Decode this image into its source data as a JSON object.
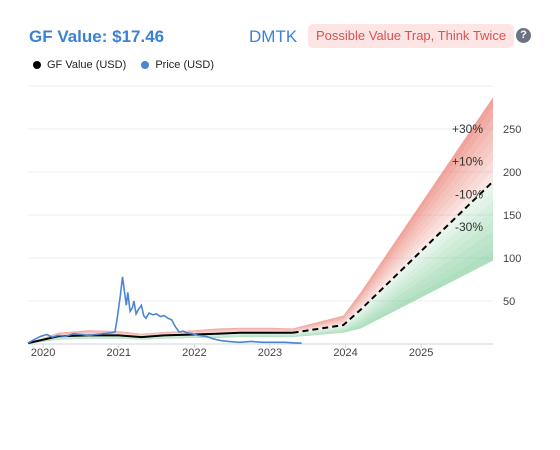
{
  "header": {
    "gf_value_text": "GF Value: $17.46",
    "ticker": "DMTK",
    "badge": "Possible Value Trap, Think Twice",
    "help_icon": "?"
  },
  "colors": {
    "accent": "#3b82d6",
    "badge_bg": "#fde5e5",
    "badge_text": "#d9534f",
    "gf_line": "#000000",
    "price_line": "#4a86d4",
    "upper_band": "#e8786b",
    "lower_band": "#6cc48a"
  },
  "chart_data": {
    "type": "line",
    "ylim": [
      0,
      300
    ],
    "xlim": [
      2019.8,
      2025.95
    ],
    "x_ticks": [
      "2020",
      "2021",
      "2022",
      "2023",
      "2024",
      "2025"
    ],
    "y_ticks": [
      50,
      100,
      150,
      200,
      250
    ],
    "grid": true,
    "legend_position": "top-left",
    "band_labels": [
      "+30%",
      "+10%",
      "-10%",
      "-30%"
    ],
    "series": [
      {
        "name": "GF Value (USD)",
        "x": [
          2019.8,
          2020.2,
          2020.6,
          2021.0,
          2021.3,
          2021.6,
          2022.0,
          2022.3,
          2022.6,
          2023.0,
          2023.3,
          2023.97,
          2024.2,
          2025.95
        ],
        "values": [
          1,
          9,
          10,
          10,
          8,
          10,
          11,
          12,
          13,
          13,
          13,
          22,
          40,
          189
        ]
      },
      {
        "name": "Price (USD)",
        "x": [
          2019.8,
          2019.9,
          2019.97,
          2020.05,
          2020.12,
          2020.2,
          2020.3,
          2020.4,
          2020.5,
          2020.6,
          2020.7,
          2020.8,
          2020.9,
          2020.95,
          2020.98,
          2021.02,
          2021.05,
          2021.07,
          2021.1,
          2021.12,
          2021.15,
          2021.18,
          2021.2,
          2021.23,
          2021.26,
          2021.3,
          2021.33,
          2021.36,
          2021.4,
          2021.45,
          2021.5,
          2021.55,
          2021.6,
          2021.65,
          2021.7,
          2021.75,
          2021.8,
          2021.85,
          2021.9,
          2021.97,
          2022.05,
          2022.15,
          2022.25,
          2022.35,
          2022.45,
          2022.6,
          2022.75,
          2022.9,
          2023.05,
          2023.2,
          2023.35,
          2023.42
        ],
        "values": [
          1,
          6,
          9,
          11,
          8,
          10,
          9,
          12,
          11,
          10,
          11,
          12,
          13,
          14,
          30,
          55,
          78,
          65,
          45,
          60,
          38,
          42,
          50,
          35,
          40,
          45,
          33,
          30,
          36,
          34,
          35,
          32,
          33,
          30,
          28,
          20,
          14,
          15,
          13,
          12,
          10,
          9,
          6,
          4,
          3,
          2,
          3,
          2,
          2,
          2,
          1,
          1
        ]
      }
    ],
    "bands": {
      "x": [
        2019.8,
        2020.2,
        2020.6,
        2021.0,
        2021.3,
        2021.6,
        2022.0,
        2022.3,
        2022.6,
        2023.0,
        2023.3,
        2023.97,
        2024.2,
        2025.95
      ],
      "upper_30": [
        1,
        13,
        16,
        15,
        12,
        14,
        16,
        18,
        19,
        19,
        18,
        33,
        60,
        287
      ],
      "lower_30": [
        0,
        5,
        6,
        6,
        5,
        6,
        7,
        7,
        8,
        8,
        8,
        13,
        18,
        97
      ]
    }
  },
  "legend": {
    "gf_value_label": "GF Value (USD)",
    "price_label": "Price (USD)"
  }
}
